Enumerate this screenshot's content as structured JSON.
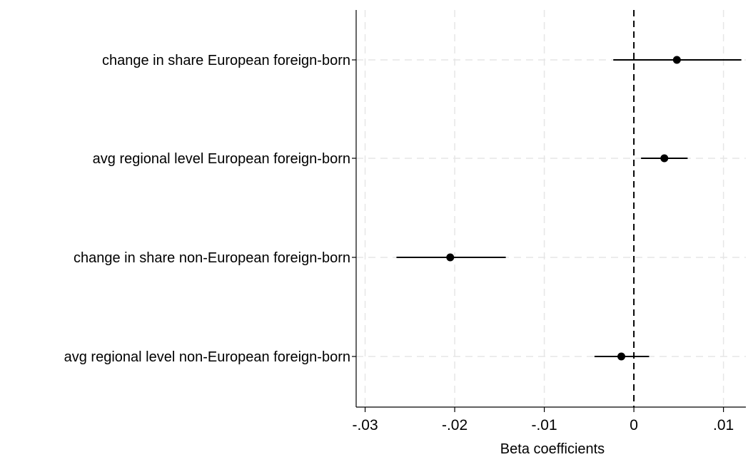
{
  "chart_data": {
    "type": "scatter",
    "subtype": "coefficient-plot",
    "title": "",
    "xlabel": "Beta coefficients",
    "ylabel": "",
    "xlim": [
      -0.031,
      0.0125
    ],
    "grid": true,
    "legend": "none",
    "zero_line": 0,
    "x_ticks": [
      {
        "value": -0.03,
        "label": "-.03"
      },
      {
        "value": -0.02,
        "label": "-.02"
      },
      {
        "value": -0.01,
        "label": "-.01"
      },
      {
        "value": 0,
        "label": "0"
      },
      {
        "value": 0.01,
        "label": ".01"
      }
    ],
    "categories": [
      "change in share European foreign-born",
      "avg regional level European foreign-born",
      "change in share non-European foreign-born",
      "avg regional level non-European foreign-born"
    ],
    "series": [
      {
        "estimate": [
          0.0048,
          0.0034,
          -0.0205,
          -0.0014
        ],
        "ci_low": [
          -0.0023,
          0.0008,
          -0.0265,
          -0.0044
        ],
        "ci_high": [
          0.012,
          0.006,
          -0.0143,
          0.0017
        ]
      }
    ],
    "colors": {
      "marker": "#000000",
      "ci_line": "#000000",
      "grid": "#e6e6e6",
      "zero_line": "#000000"
    }
  }
}
